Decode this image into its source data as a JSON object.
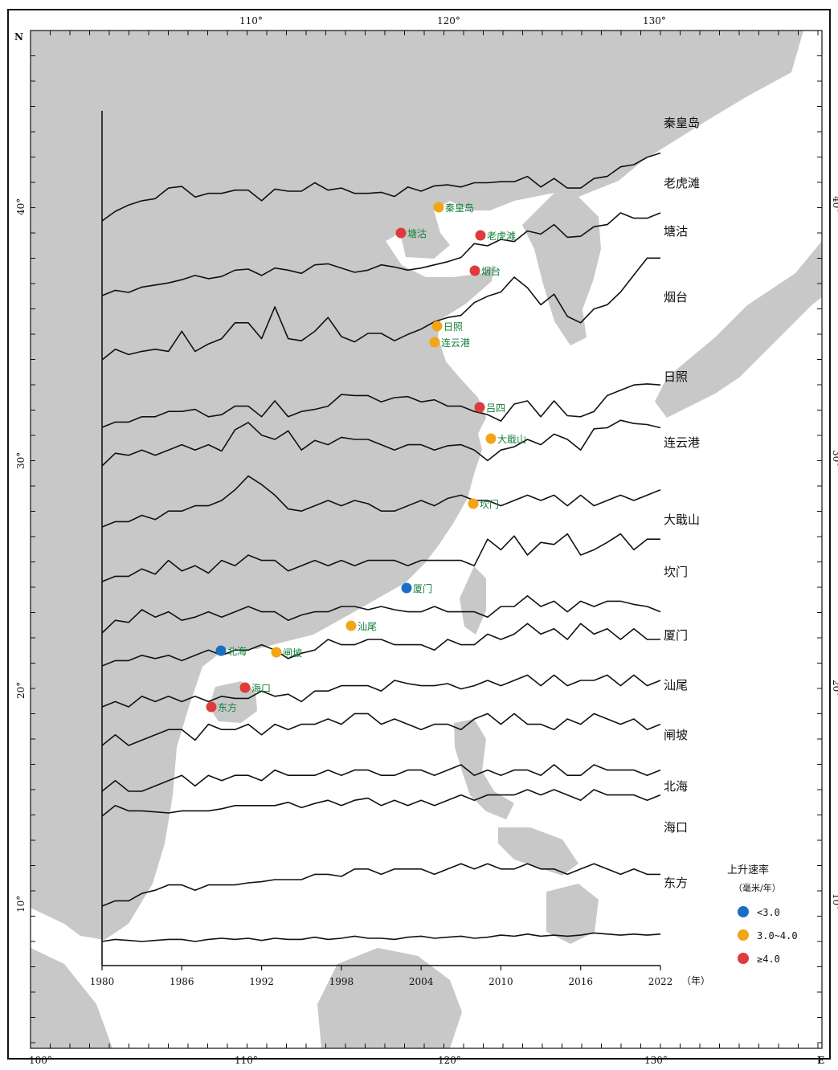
{
  "frame": {
    "corner_n": "N",
    "corner_e": "E",
    "lon_top": [
      "110°",
      "120°",
      "130°"
    ],
    "lon_bottom": [
      "100°",
      "110°",
      "120°",
      "130°"
    ],
    "lat_left": [
      "40°",
      "30°",
      "20°",
      "10°"
    ],
    "lat_right": [
      "40°",
      "30°",
      "20°",
      "10°"
    ]
  },
  "colors": {
    "land": "#c8c8c8",
    "water": "#ffffff",
    "line": "#111111",
    "rate_low": "#1a6fc4",
    "rate_mid": "#f2a516",
    "rate_high": "#e03b3b",
    "station_text": "#12803a"
  },
  "chart_data": {
    "type": "line",
    "x": [
      1980,
      1981,
      1982,
      1983,
      1984,
      1985,
      1986,
      1987,
      1988,
      1989,
      1990,
      1991,
      1992,
      1993,
      1994,
      1995,
      1996,
      1997,
      1998,
      1999,
      2000,
      2001,
      2002,
      2003,
      2004,
      2005,
      2006,
      2007,
      2008,
      2009,
      2010,
      2011,
      2012,
      2013,
      2014,
      2015,
      2016,
      2017,
      2018,
      2019,
      2020,
      2021,
      2022
    ],
    "x_ticks": [
      "1980",
      "1986",
      "1992",
      "1998",
      "2004",
      "2010",
      "2016",
      "2022"
    ],
    "x_unit": "（年）",
    "series": [
      {
        "name": "秦皇岛",
        "values": [
          0,
          18,
          30,
          38,
          42,
          62,
          65,
          45,
          52,
          52,
          58,
          58,
          38,
          60,
          56,
          56,
          72,
          58,
          62,
          52,
          52,
          54,
          46,
          64,
          56,
          66,
          68,
          64,
          72,
          72,
          74,
          74,
          84,
          64,
          80,
          62,
          62,
          80,
          84,
          102,
          106,
          120,
          128
        ]
      },
      {
        "name": "老虎滩",
        "values": [
          0,
          10,
          6,
          16,
          20,
          24,
          30,
          38,
          32,
          36,
          48,
          50,
          38,
          52,
          48,
          42,
          58,
          60,
          52,
          44,
          48,
          58,
          54,
          48,
          52,
          58,
          64,
          72,
          98,
          94,
          106,
          102,
          122,
          116,
          134,
          110,
          112,
          130,
          134,
          156,
          146,
          146,
          156
        ]
      },
      {
        "name": "塘沽",
        "values": [
          0,
          20,
          10,
          16,
          20,
          16,
          54,
          16,
          30,
          40,
          70,
          70,
          40,
          100,
          40,
          36,
          54,
          80,
          44,
          34,
          50,
          50,
          36,
          48,
          58,
          72,
          80,
          84,
          108,
          120,
          128,
          156,
          136,
          104,
          124,
          82,
          70,
          96,
          104,
          128,
          160,
          192,
          192
        ]
      },
      {
        "name": "烟台",
        "values": [
          0,
          10,
          10,
          20,
          20,
          30,
          30,
          34,
          20,
          24,
          40,
          40,
          20,
          50,
          20,
          30,
          34,
          40,
          62,
          60,
          60,
          48,
          56,
          58,
          48,
          52,
          40,
          40,
          30,
          24,
          12,
          44,
          50,
          20,
          50,
          22,
          20,
          30,
          60,
          70,
          80,
          82,
          80
        ]
      },
      {
        "name": "日照",
        "values": [
          0,
          24,
          20,
          30,
          20,
          30,
          40,
          30,
          40,
          28,
          68,
          82,
          58,
          50,
          66,
          30,
          48,
          40,
          54,
          50,
          50,
          40,
          30,
          40,
          40,
          30,
          38,
          40,
          30,
          10,
          30,
          36,
          50,
          40,
          60,
          50,
          30,
          70,
          72,
          86,
          80,
          78,
          72
        ]
      },
      {
        "name": "连云港",
        "values": [
          0,
          10,
          10,
          22,
          14,
          30,
          30,
          40,
          40,
          50,
          70,
          96,
          80,
          60,
          34,
          30,
          40,
          50,
          40,
          50,
          44,
          30,
          30,
          40,
          50,
          40,
          54,
          60,
          50,
          50,
          40,
          50,
          60,
          50,
          60,
          40,
          60,
          40,
          50,
          60,
          50,
          60,
          70
        ]
      },
      {
        "name": "大戢山",
        "values": [
          0,
          10,
          10,
          24,
          14,
          40,
          20,
          30,
          16,
          40,
          30,
          50,
          40,
          40,
          20,
          30,
          40,
          30,
          40,
          30,
          40,
          40,
          40,
          30,
          40,
          40,
          40,
          40,
          30,
          80,
          60,
          86,
          50,
          74,
          70,
          90,
          50,
          60,
          74,
          90,
          60,
          80,
          80
        ]
      },
      {
        "name": "坎门",
        "values": [
          0,
          24,
          20,
          44,
          30,
          40,
          24,
          30,
          40,
          30,
          40,
          50,
          40,
          40,
          24,
          34,
          40,
          40,
          50,
          50,
          44,
          50,
          44,
          40,
          40,
          50,
          40,
          40,
          40,
          30,
          50,
          50,
          70,
          50,
          60,
          40,
          60,
          50,
          60,
          60,
          54,
          50,
          40
        ]
      },
      {
        "name": "厦门",
        "values": [
          0,
          10,
          10,
          20,
          14,
          20,
          10,
          20,
          30,
          20,
          30,
          30,
          40,
          30,
          14,
          24,
          30,
          50,
          40,
          40,
          50,
          50,
          40,
          40,
          40,
          30,
          50,
          40,
          40,
          60,
          50,
          60,
          80,
          60,
          70,
          50,
          80,
          60,
          70,
          50,
          70,
          50,
          50
        ]
      },
      {
        "name": "汕尾",
        "values": [
          0,
          10,
          0,
          20,
          10,
          20,
          10,
          20,
          10,
          20,
          16,
          16,
          30,
          20,
          24,
          10,
          30,
          30,
          40,
          40,
          40,
          30,
          50,
          44,
          40,
          40,
          44,
          34,
          40,
          50,
          40,
          50,
          60,
          40,
          60,
          40,
          50,
          50,
          60,
          40,
          60,
          40,
          50
        ]
      },
      {
        "name": "闸坡",
        "values": [
          0,
          20,
          0,
          10,
          20,
          30,
          30,
          10,
          40,
          30,
          30,
          40,
          20,
          40,
          30,
          40,
          40,
          50,
          40,
          60,
          60,
          40,
          50,
          40,
          30,
          40,
          40,
          30,
          50,
          60,
          40,
          60,
          40,
          40,
          30,
          50,
          40,
          60,
          50,
          40,
          50,
          30,
          40
        ]
      },
      {
        "name": "北海",
        "values": [
          0,
          20,
          0,
          0,
          10,
          20,
          30,
          10,
          30,
          20,
          30,
          30,
          20,
          40,
          30,
          30,
          30,
          40,
          30,
          40,
          40,
          30,
          30,
          40,
          40,
          30,
          40,
          50,
          30,
          40,
          30,
          40,
          40,
          30,
          50,
          30,
          30,
          50,
          40,
          40,
          40,
          30,
          40
        ]
      },
      {
        "name": "海口",
        "values": [
          0,
          20,
          10,
          10,
          8,
          6,
          10,
          10,
          10,
          14,
          20,
          20,
          20,
          20,
          26,
          16,
          24,
          30,
          20,
          30,
          34,
          20,
          30,
          20,
          30,
          20,
          30,
          40,
          30,
          40,
          40,
          40,
          50,
          40,
          50,
          40,
          30,
          50,
          40,
          40,
          40,
          30,
          40
        ]
      },
      {
        "name": "东方",
        "values": [
          0,
          10,
          10,
          24,
          30,
          40,
          40,
          30,
          40,
          40,
          40,
          44,
          46,
          50,
          50,
          50,
          60,
          60,
          56,
          70,
          70,
          60,
          70,
          70,
          70,
          60,
          70,
          80,
          70,
          80,
          70,
          70,
          80,
          70,
          70,
          60,
          70,
          80,
          70,
          60,
          70,
          60,
          60
        ]
      },
      {
        "name": "",
        "values": [
          0,
          4,
          2,
          0,
          2,
          4,
          4,
          0,
          4,
          6,
          4,
          6,
          2,
          6,
          4,
          4,
          8,
          4,
          6,
          10,
          6,
          6,
          4,
          8,
          10,
          6,
          8,
          10,
          6,
          8,
          12,
          10,
          14,
          10,
          12,
          10,
          12,
          16,
          14,
          12,
          14,
          12,
          14
        ]
      }
    ]
  },
  "stations": [
    {
      "name": "秦皇岛",
      "rate": "mid"
    },
    {
      "name": "塘沽",
      "rate": "high"
    },
    {
      "name": "老虎滩",
      "rate": "high"
    },
    {
      "name": "烟台",
      "rate": "high"
    },
    {
      "name": "日照",
      "rate": "mid"
    },
    {
      "name": "连云港",
      "rate": "mid"
    },
    {
      "name": "吕四",
      "rate": "high"
    },
    {
      "name": "大戢山",
      "rate": "mid"
    },
    {
      "name": "坎门",
      "rate": "mid"
    },
    {
      "name": "厦门",
      "rate": "low"
    },
    {
      "name": "汕尾",
      "rate": "mid"
    },
    {
      "name": "北海",
      "rate": "low"
    },
    {
      "name": "闸坡",
      "rate": "mid"
    },
    {
      "name": "海口",
      "rate": "high"
    },
    {
      "name": "东方",
      "rate": "high"
    }
  ],
  "legend": {
    "title": "上升速率",
    "subtitle": "（毫米/年）",
    "items": [
      {
        "rate": "low",
        "label": "<3.0"
      },
      {
        "rate": "mid",
        "label": "3.0~4.0"
      },
      {
        "rate": "high",
        "label": "≥4.0"
      }
    ]
  }
}
